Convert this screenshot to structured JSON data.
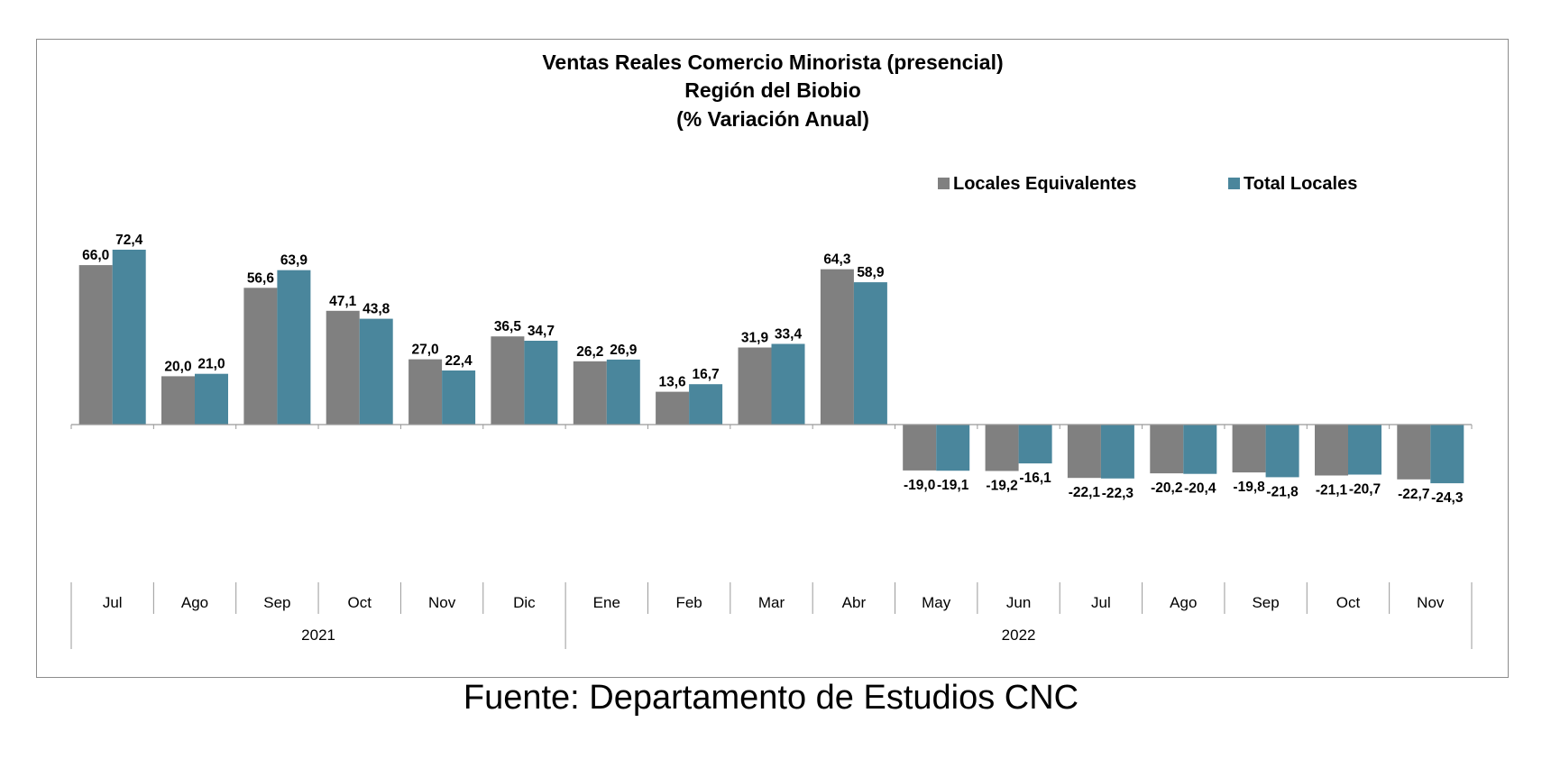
{
  "chart_data": {
    "type": "bar",
    "title": [
      "Ventas Reales Comercio Minorista (presencial)",
      "Región del Biobio",
      "(% Variación Anual)"
    ],
    "categories": [
      "Jul",
      "Ago",
      "Sep",
      "Oct",
      "Nov",
      "Dic",
      "Ene",
      "Feb",
      "Mar",
      "Abr",
      "May",
      "Jun",
      "Jul",
      "Ago",
      "Sep",
      "Oct",
      "Nov"
    ],
    "groups": [
      {
        "label": "2021",
        "count": 6
      },
      {
        "label": "2022",
        "count": 11
      }
    ],
    "series": [
      {
        "name": "Locales Equivalentes",
        "color": "#808080",
        "values": [
          66.0,
          20.0,
          56.6,
          47.1,
          27.0,
          36.5,
          26.2,
          13.6,
          31.9,
          64.3,
          -19.0,
          -19.2,
          -22.1,
          -20.2,
          -19.8,
          -21.1,
          -22.7
        ],
        "labels": [
          "66,0",
          "20,0",
          "56,6",
          "47,1",
          "27,0",
          "36,5",
          "26,2",
          "13,6",
          "31,9",
          "64,3",
          "-19,0",
          "-19,2",
          "-22,1",
          "-20,2",
          "-19,8",
          "-21,1",
          "-22,7"
        ]
      },
      {
        "name": "Total Locales",
        "color": "#4a869c",
        "values": [
          72.4,
          21.0,
          63.9,
          43.8,
          22.4,
          34.7,
          26.9,
          16.7,
          33.4,
          58.9,
          -19.1,
          -16.1,
          -22.3,
          -20.4,
          -21.8,
          -20.7,
          -24.3
        ],
        "labels": [
          "72,4",
          "21,0",
          "63,9",
          "43,8",
          "22,4",
          "34,7",
          "26,9",
          "16,7",
          "33,4",
          "58,9",
          "-19,1",
          "-16,1",
          "-22,3",
          "-20,4",
          "-21,8",
          "-20,7",
          "-24,3"
        ]
      }
    ],
    "legend_position": "top-right",
    "grid": false
  },
  "source_note": "Fuente: Departamento de Estudios CNC"
}
